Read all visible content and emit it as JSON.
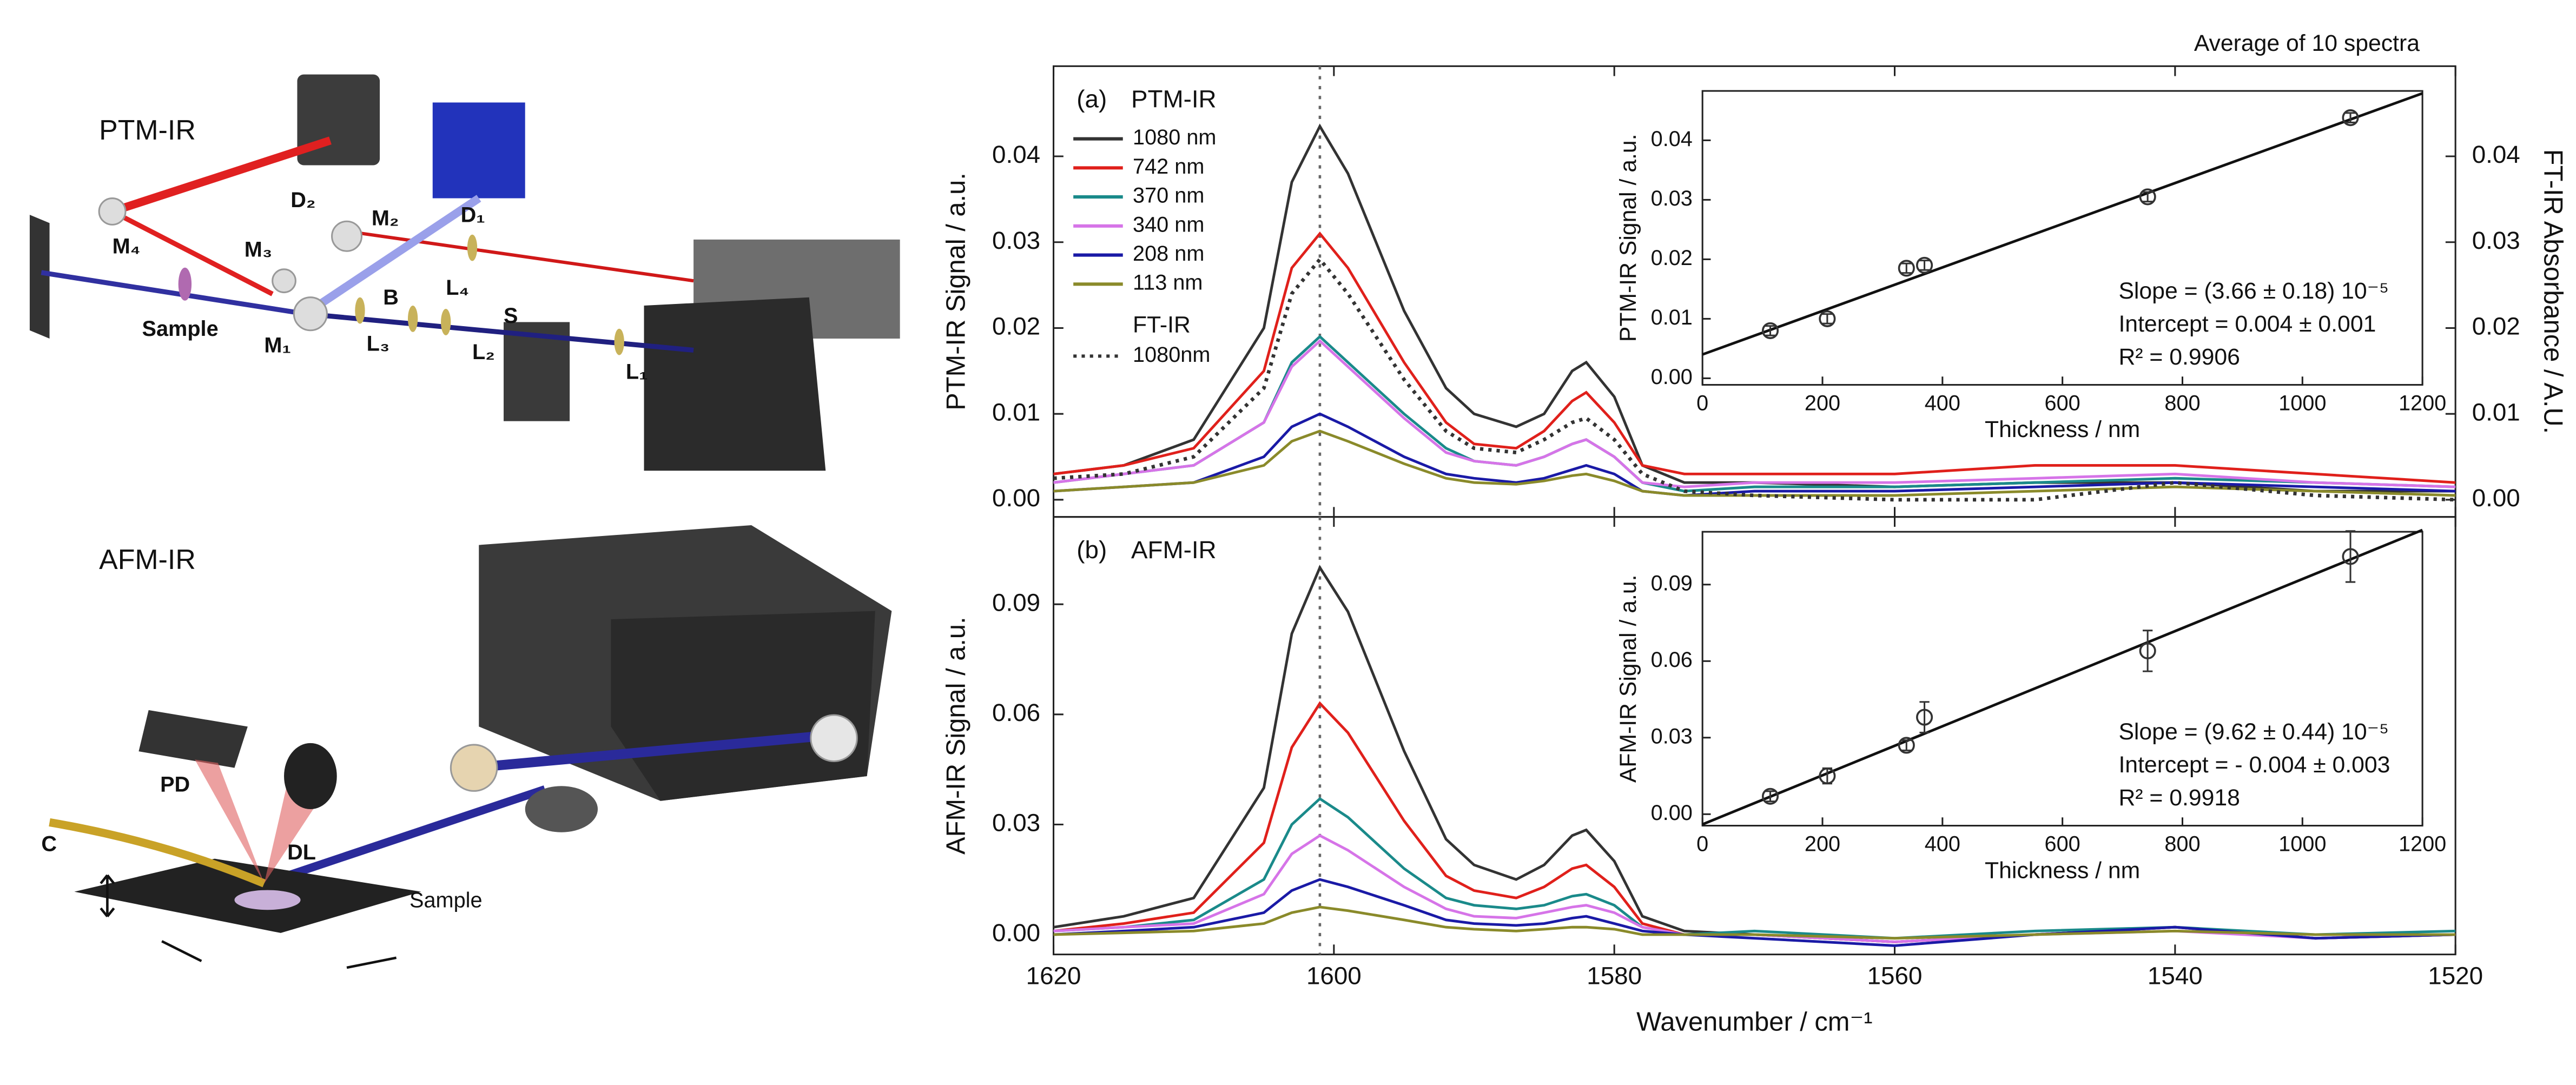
{
  "diagram": {
    "top": {
      "title": "PTM-IR",
      "labels": [
        "D₂",
        "M₄",
        "M₃",
        "M₂",
        "D₁",
        "L₄",
        "Sample",
        "M₁",
        "L₃",
        "B",
        "L₂",
        "S",
        "L₁"
      ]
    },
    "bottom": {
      "title": "AFM-IR",
      "labels": [
        "PD",
        "DL",
        "C",
        "Sample"
      ]
    }
  },
  "chart_data": [
    {
      "type": "line",
      "panel_label": "(a)",
      "title": "PTM-IR",
      "annotation": "Average of 10 spectra",
      "ylabel": "PTM-IR Signal / a.u.",
      "y2label": "FT-IR Absorbance / A.U.",
      "xlim": [
        1620,
        1520
      ],
      "ylim": [
        -0.002,
        0.0505
      ],
      "y2lim": [
        -0.002,
        0.0505
      ],
      "yticks": [
        {
          "value": 0,
          "label": "0.00"
        },
        0.01,
        0.02,
        0.03,
        0.04
      ],
      "y2ticks": [
        {
          "value": 0,
          "label": "0.00"
        },
        0.01,
        0.02,
        0.03,
        0.04
      ],
      "vline": 1601,
      "legend": "upper left",
      "x": [
        1620,
        1615,
        1610,
        1605,
        1603,
        1601,
        1599,
        1595,
        1592,
        1590,
        1587,
        1585,
        1583,
        1582,
        1580,
        1578,
        1575,
        1570,
        1560,
        1550,
        1540,
        1530,
        1520
      ],
      "series": [
        {
          "name": "1080 nm",
          "color": "#333333",
          "values": [
            0.003,
            0.004,
            0.007,
            0.02,
            0.037,
            0.0435,
            0.038,
            0.022,
            0.013,
            0.01,
            0.0085,
            0.01,
            0.015,
            0.016,
            0.012,
            0.004,
            0.002,
            0.002,
            0.0015,
            0.002,
            0.002,
            0.001,
            0.001
          ]
        },
        {
          "name": "742 nm",
          "color": "#e0201b",
          "values": [
            0.003,
            0.004,
            0.006,
            0.015,
            0.027,
            0.031,
            0.027,
            0.016,
            0.009,
            0.0065,
            0.006,
            0.008,
            0.0115,
            0.0125,
            0.009,
            0.004,
            0.003,
            0.003,
            0.003,
            0.004,
            0.004,
            0.003,
            0.002
          ]
        },
        {
          "name": "370 nm",
          "color": "#1a8a8a",
          "values": [
            0.002,
            0.003,
            0.004,
            0.009,
            0.016,
            0.019,
            0.016,
            0.01,
            0.006,
            0.0045,
            0.004,
            0.005,
            0.0065,
            0.007,
            0.005,
            0.002,
            0.001,
            0.0015,
            0.0015,
            0.002,
            0.0025,
            0.002,
            0.0015
          ]
        },
        {
          "name": "340 nm",
          "color": "#d674e8",
          "values": [
            0.002,
            0.003,
            0.004,
            0.009,
            0.0155,
            0.0185,
            0.0155,
            0.0095,
            0.0055,
            0.0045,
            0.004,
            0.005,
            0.0065,
            0.007,
            0.005,
            0.002,
            0.0015,
            0.002,
            0.002,
            0.0025,
            0.003,
            0.002,
            0.0015
          ]
        },
        {
          "name": "208 nm",
          "color": "#1a1aa6",
          "values": [
            0.001,
            0.0015,
            0.002,
            0.005,
            0.0085,
            0.01,
            0.0085,
            0.005,
            0.003,
            0.0025,
            0.002,
            0.0025,
            0.0035,
            0.004,
            0.003,
            0.001,
            0.0005,
            0.001,
            0.001,
            0.0015,
            0.002,
            0.0015,
            0.001
          ]
        },
        {
          "name": "113 nm",
          "color": "#8a8a2a",
          "values": [
            0.001,
            0.0015,
            0.002,
            0.004,
            0.0068,
            0.008,
            0.0068,
            0.0042,
            0.0025,
            0.002,
            0.0018,
            0.0022,
            0.0028,
            0.003,
            0.0022,
            0.001,
            0.0005,
            0.0005,
            0.0005,
            0.001,
            0.0015,
            0.001,
            0.0005
          ]
        },
        {
          "name": "1080nm",
          "group": "FT-IR",
          "color": "#333333",
          "dotted": true,
          "axis": "y2",
          "values": [
            0.0025,
            0.003,
            0.005,
            0.013,
            0.024,
            0.028,
            0.024,
            0.014,
            0.008,
            0.006,
            0.0055,
            0.007,
            0.009,
            0.0095,
            0.007,
            0.003,
            0.001,
            0.0005,
            0,
            0,
            0.002,
            0.0005,
            0
          ]
        }
      ]
    },
    {
      "type": "scatter",
      "xlabel": "Thickness / nm",
      "ylabel": "PTM-IR Signal / a.u.",
      "xlim": [
        0,
        1200
      ],
      "ylim": [
        -0.0011,
        0.0483
      ],
      "xticks": [
        0,
        200,
        400,
        600,
        800,
        1000,
        1200
      ],
      "yticks": [
        {
          "value": 0,
          "label": "0.00"
        },
        0.01,
        0.02,
        0.03,
        0.04
      ],
      "x": [
        113,
        208,
        340,
        370,
        742,
        1080
      ],
      "values": [
        0.008,
        0.01,
        0.0185,
        0.019,
        0.0305,
        0.0438
      ],
      "errors": [
        0.0008,
        0.0008,
        0.0008,
        0.0008,
        0.0008,
        0.0008
      ],
      "color": "#333333",
      "fit": {
        "x": [
          0,
          1200
        ],
        "values": [
          0.004,
          0.0479
        ]
      },
      "annotations": [
        "Slope = (3.66 ± 0.18) 10⁻⁵",
        "Intercept = 0.004 ± 0.001",
        "R² = 0.9906"
      ]
    },
    {
      "type": "line",
      "panel_label": "(b)",
      "title": "AFM-IR",
      "ylabel": "AFM-IR Signal / a.u.",
      "xlabel": "Wavenumber / cm⁻¹",
      "xlim": [
        1620,
        1520
      ],
      "ylim": [
        -0.0054,
        0.1138
      ],
      "xticks": [
        1620,
        1600,
        1580,
        1560,
        1540,
        1520
      ],
      "yticks": [
        {
          "value": 0,
          "label": "0.00"
        },
        0.03,
        0.06,
        0.09
      ],
      "vline": 1601,
      "x": [
        1620,
        1615,
        1610,
        1605,
        1603,
        1601,
        1599,
        1595,
        1592,
        1590,
        1587,
        1585,
        1583,
        1582,
        1580,
        1578,
        1575,
        1570,
        1560,
        1550,
        1540,
        1530,
        1520
      ],
      "series": [
        {
          "color": "#333333",
          "values": [
            0.002,
            0.005,
            0.01,
            0.04,
            0.082,
            0.1,
            0.088,
            0.05,
            0.026,
            0.019,
            0.015,
            0.019,
            0.027,
            0.0285,
            0.02,
            0.005,
            0.001,
            0,
            -0.002,
            0,
            0.002,
            -0.001,
            0
          ]
        },
        {
          "color": "#e0201b",
          "values": [
            0.001,
            0.003,
            0.006,
            0.025,
            0.051,
            0.063,
            0.055,
            0.031,
            0.016,
            0.012,
            0.01,
            0.013,
            0.018,
            0.019,
            0.013,
            0.003,
            0,
            0,
            -0.002,
            0,
            0.002,
            -0.001,
            0
          ]
        },
        {
          "color": "#1a8a8a",
          "values": [
            0.001,
            0.002,
            0.004,
            0.015,
            0.03,
            0.037,
            0.032,
            0.018,
            0.01,
            0.008,
            0.007,
            0.008,
            0.0105,
            0.011,
            0.008,
            0.002,
            0,
            0.001,
            -0.001,
            0.001,
            0.002,
            0,
            0.001
          ]
        },
        {
          "color": "#d674e8",
          "values": [
            0.001,
            0.002,
            0.003,
            0.011,
            0.022,
            0.027,
            0.023,
            0.013,
            0.007,
            0.005,
            0.0045,
            0.006,
            0.0075,
            0.008,
            0.006,
            0.002,
            0,
            0,
            -0.002,
            0,
            0.001,
            -0.001,
            0
          ]
        },
        {
          "color": "#1a1aa6",
          "values": [
            0,
            0.001,
            0.002,
            0.006,
            0.012,
            0.015,
            0.013,
            0.008,
            0.004,
            0.003,
            0.0025,
            0.003,
            0.0045,
            0.005,
            0.003,
            0.001,
            0,
            -0.001,
            -0.003,
            0,
            0.002,
            -0.001,
            0
          ]
        },
        {
          "color": "#8a8a2a",
          "values": [
            0,
            0.0005,
            0.001,
            0.003,
            0.006,
            0.0075,
            0.0065,
            0.004,
            0.002,
            0.0015,
            0.001,
            0.0015,
            0.002,
            0.002,
            0.0015,
            0,
            0,
            0,
            -0.001,
            0,
            0.001,
            0,
            0
          ]
        }
      ]
    },
    {
      "type": "scatter",
      "xlabel": "Thickness / nm",
      "ylabel": "AFM-IR Signal / a.u.",
      "xlim": [
        0,
        1200
      ],
      "ylim": [
        -0.0045,
        0.1107
      ],
      "xticks": [
        0,
        200,
        400,
        600,
        800,
        1000,
        1200
      ],
      "yticks": [
        {
          "value": 0,
          "label": "0.00"
        },
        0.03,
        0.06,
        0.09
      ],
      "x": [
        113,
        208,
        340,
        370,
        742,
        1080
      ],
      "values": [
        0.007,
        0.015,
        0.027,
        0.038,
        0.064,
        0.101
      ],
      "errors": [
        0.002,
        0.003,
        0.002,
        0.006,
        0.008,
        0.01
      ],
      "color": "#333333",
      "fit": {
        "x": [
          0,
          1200
        ],
        "values": [
          -0.004,
          0.1114
        ]
      },
      "annotations": [
        "Slope = (9.62 ± 0.44) 10⁻⁵",
        "Intercept = - 0.004 ± 0.003",
        "R² = 0.9918"
      ]
    }
  ]
}
